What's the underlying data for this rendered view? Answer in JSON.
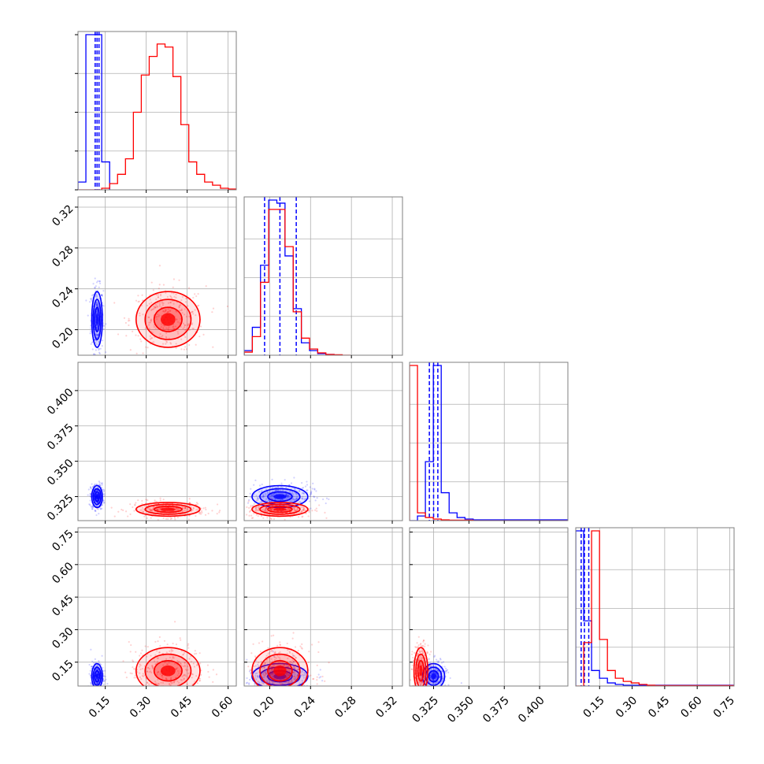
{
  "colors": {
    "series_a": "#0000ff",
    "series_b": "#ff0000",
    "frame": "#7f7f7f",
    "grid": "#b0b0b0"
  },
  "chart_data": {
    "type": "scatter",
    "layout": "corner-plot",
    "grid": true,
    "legend": "none",
    "parameters": [
      {
        "range": [
          0.05,
          0.63
        ],
        "ticks": [
          0.15,
          0.3,
          0.45,
          0.6
        ],
        "tick_labels": [
          "0.15",
          "0.30",
          "0.45",
          "0.60"
        ]
      },
      {
        "range": [
          0.175,
          0.33
        ],
        "ticks": [
          0.2,
          0.24,
          0.28,
          0.32
        ],
        "tick_labels": [
          "0.20",
          "0.24",
          "0.28",
          "0.32"
        ]
      },
      {
        "range": [
          0.308,
          0.42
        ],
        "ticks": [
          0.325,
          0.35,
          0.375,
          0.4
        ],
        "tick_labels": [
          "0.325",
          "0.350",
          "0.375",
          "0.400"
        ]
      },
      {
        "range": [
          0.04,
          0.77
        ],
        "ticks": [
          0.15,
          0.3,
          0.45,
          0.6,
          0.75
        ],
        "tick_labels": [
          "0.15",
          "0.30",
          "0.45",
          "0.60",
          "0.75"
        ]
      }
    ],
    "series": [
      {
        "color": "#0000ff",
        "means": [
          0.12,
          0.21,
          0.325,
          0.085
        ],
        "stds": [
          0.01,
          0.014,
          0.004,
          0.03
        ],
        "quantile_lines": [
          [
            0.113,
            0.12,
            0.127
          ],
          [
            0.195,
            0.21,
            0.226
          ],
          [
            0.322,
            0.325,
            0.328
          ],
          [
            0.065,
            0.08,
            0.1
          ]
        ],
        "histograms": [
          {
            "edges": [
              0.05,
              0.079,
              0.108,
              0.137,
              0.166
            ],
            "counts": [
              0.05,
              1.0,
              1.0,
              0.18
            ]
          },
          {
            "edges": [
              0.175,
              0.183,
              0.191,
              0.199,
              0.207,
              0.215,
              0.223,
              0.231,
              0.239,
              0.247,
              0.255,
              0.263,
              0.271
            ],
            "counts": [
              0.03,
              0.18,
              0.58,
              1.0,
              0.98,
              0.64,
              0.3,
              0.08,
              0.03,
              0.01,
              0.005,
              0.0
            ]
          },
          {
            "edges": [
              0.308,
              0.3136,
              0.3192,
              0.3248,
              0.3304,
              0.336,
              0.3416,
              0.3472,
              0.353,
              0.42
            ],
            "counts": [
              0.0,
              0.03,
              0.38,
              1.0,
              0.18,
              0.05,
              0.02,
              0.01,
              0.005
            ]
          },
          {
            "edges": [
              0.04,
              0.0765,
              0.113,
              0.1495,
              0.186,
              0.2225,
              0.259,
              0.77
            ],
            "counts": [
              1.0,
              0.42,
              0.1,
              0.05,
              0.02,
              0.01,
              0.005
            ]
          }
        ]
      },
      {
        "color": "#ff0000",
        "means": [
          0.38,
          0.21,
          0.316,
          0.11
        ],
        "stds": [
          0.06,
          0.014,
          0.0025,
          0.055
        ],
        "quantile_lines": [],
        "histograms": [
          {
            "edges": [
              0.05,
              0.079,
              0.108,
              0.137,
              0.166,
              0.195,
              0.224,
              0.253,
              0.282,
              0.311,
              0.34,
              0.369,
              0.398,
              0.427,
              0.456,
              0.485,
              0.514,
              0.543,
              0.572,
              0.601,
              0.63
            ],
            "counts": [
              0,
              0,
              0,
              0.01,
              0.04,
              0.1,
              0.2,
              0.5,
              0.74,
              0.86,
              0.94,
              0.92,
              0.73,
              0.42,
              0.18,
              0.1,
              0.05,
              0.03,
              0.01,
              0.005
            ]
          },
          {
            "edges": [
              0.175,
              0.183,
              0.191,
              0.199,
              0.207,
              0.215,
              0.223,
              0.231,
              0.239,
              0.247,
              0.255,
              0.263,
              0.271,
              0.279
            ],
            "counts": [
              0.02,
              0.12,
              0.47,
              0.94,
              0.94,
              0.7,
              0.28,
              0.11,
              0.04,
              0.015,
              0.005,
              0.003,
              0.0
            ]
          },
          {
            "edges": [
              0.308,
              0.3136,
              0.3192,
              0.3248,
              0.3304,
              0.336,
              0.353,
              0.42
            ],
            "counts": [
              1.0,
              0.05,
              0.02,
              0.01,
              0.005,
              0.003,
              0.0
            ]
          },
          {
            "edges": [
              0.04,
              0.0765,
              0.113,
              0.1495,
              0.186,
              0.2225,
              0.259,
              0.2955,
              0.332,
              0.3685,
              0.405,
              0.77
            ],
            "counts": [
              0.0,
              0.28,
              1.0,
              0.3,
              0.1,
              0.05,
              0.03,
              0.02,
              0.01,
              0.005,
              0.003
            ]
          }
        ]
      }
    ]
  }
}
